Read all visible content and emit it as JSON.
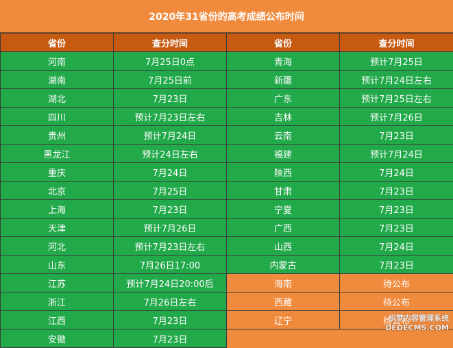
{
  "title": "2020年31省份的高考成绩公布时间",
  "headers": [
    "省份",
    "查分时间",
    "省份",
    "查分时间"
  ],
  "rows": [
    [
      "河南",
      "7月25日0点",
      "青海",
      "预计7月25日"
    ],
    [
      "湖南",
      "7月25日前",
      "新疆",
      "预计7月24日左右"
    ],
    [
      "湖北",
      "7月23日",
      "广东",
      "预计7月25日左右"
    ],
    [
      "四川",
      "预计7月23日左右",
      "吉林",
      "预计7月26日"
    ],
    [
      "贵州",
      "预计7月24日",
      "云南",
      "7月23日"
    ],
    [
      "黑龙江",
      "预计24日左右",
      "福建",
      "预计7月24日"
    ],
    [
      "重庆",
      "7月24日",
      "陕西",
      "7月24日"
    ],
    [
      "北京",
      "7月25日",
      "甘肃",
      "7月23日"
    ],
    [
      "上海",
      "7月23日",
      "宁夏",
      "7月23日"
    ],
    [
      "天津",
      "预计7月26日",
      "广西",
      "7月23日"
    ],
    [
      "河北",
      "预计7月23日左右",
      "山西",
      "7月24日"
    ],
    [
      "山东",
      "7月26日17:00",
      "内蒙古",
      "7月23日"
    ],
    [
      "江苏",
      "预计7月24日20:00后",
      "海南",
      "待公布"
    ],
    [
      "浙江",
      "7月26日左右",
      "西藏",
      "待公布"
    ],
    [
      "江西",
      "7月23日",
      "辽宁",
      "待公布"
    ],
    [
      "安徽",
      "7月23日",
      "",
      ""
    ]
  ],
  "watermark": {
    "line1": "织梦内容管理系统",
    "line2": "DEDECMS.COM"
  },
  "colors": {
    "title_bg": "#f08a3c",
    "header_bg": "#c65a11",
    "green": "#22a94a",
    "orange": "#f08a3c"
  }
}
